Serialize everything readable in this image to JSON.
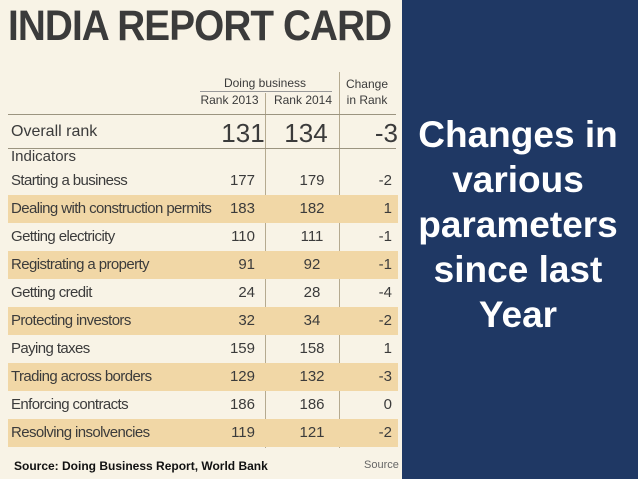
{
  "card": {
    "title": "INDIA REPORT CARD",
    "header_group": "Doing business",
    "col_rank2013": "Rank 2013",
    "col_rank2014": "Rank 2014",
    "col_change_line1": "Change",
    "col_change_line2": "in Rank",
    "overall": {
      "label": "Overall rank",
      "rank2013": "131",
      "rank2014": "134",
      "change": "-3"
    },
    "indicators_label": "Indicators",
    "rows": [
      {
        "label": "Starting a business",
        "rank2013": "177",
        "rank2014": "179",
        "change": "-2"
      },
      {
        "label": "Dealing with construction permits",
        "rank2013": "183",
        "rank2014": "182",
        "change": "1"
      },
      {
        "label": "Getting electricity",
        "rank2013": "110",
        "rank2014": "111",
        "change": "-1"
      },
      {
        "label": "Registrating a property",
        "rank2013": "91",
        "rank2014": "92",
        "change": "-1"
      },
      {
        "label": "Getting credit",
        "rank2013": "24",
        "rank2014": "28",
        "change": "-4"
      },
      {
        "label": "Protecting investors",
        "rank2013": "32",
        "rank2014": "34",
        "change": "-2"
      },
      {
        "label": "Paying taxes",
        "rank2013": "159",
        "rank2014": "158",
        "change": "1"
      },
      {
        "label": "Trading across borders",
        "rank2013": "129",
        "rank2014": "132",
        "change": "-3"
      },
      {
        "label": "Enforcing contracts",
        "rank2013": "186",
        "rank2014": "186",
        "change": "0"
      },
      {
        "label": "Resolving insolvencies",
        "rank2013": "119",
        "rank2014": "121",
        "change": "-2"
      }
    ],
    "source_cut": "Source"
  },
  "source": "Source: Doing Business Report, World Bank",
  "headline": [
    "Changes in",
    "various",
    "parameters",
    "since last",
    "Year"
  ],
  "colors": {
    "panel": "#1f3864",
    "card_bg": "#f8f3e6",
    "row_alt": "#f1d7a6"
  }
}
